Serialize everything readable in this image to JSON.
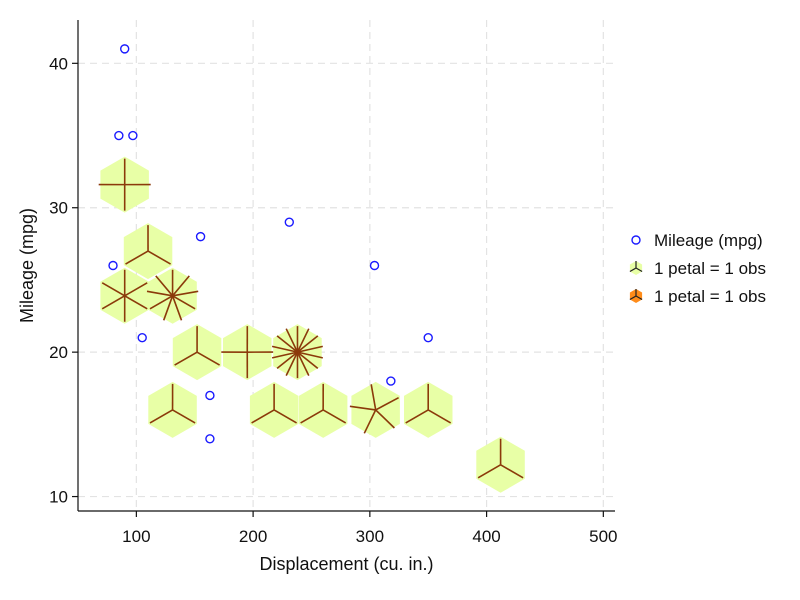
{
  "chart_data": {
    "type": "scatter",
    "subtype": "sunflower",
    "xlabel": "Displacement (cu. in.)",
    "ylabel": "Mileage (mpg)",
    "xlim": [
      50,
      510
    ],
    "ylim": [
      9,
      43
    ],
    "xticks": [
      100,
      200,
      300,
      400,
      500
    ],
    "yticks": [
      10,
      20,
      30,
      40
    ],
    "grid": true,
    "legend_position": "right",
    "colors": {
      "scatter": "#1a1aff",
      "light_sunflower": "#e8ffa6",
      "dark_sunflower": "#ff8c1a",
      "petal": "#8b3a0a",
      "grid": "#e3e3e3"
    },
    "scatter": [
      {
        "x": 90,
        "y": 41
      },
      {
        "x": 85,
        "y": 35
      },
      {
        "x": 97,
        "y": 35
      },
      {
        "x": 155,
        "y": 28
      },
      {
        "x": 231,
        "y": 29
      },
      {
        "x": 80,
        "y": 26
      },
      {
        "x": 304,
        "y": 26
      },
      {
        "x": 105,
        "y": 21
      },
      {
        "x": 350,
        "y": 21
      },
      {
        "x": 318,
        "y": 18
      },
      {
        "x": 163,
        "y": 17
      },
      {
        "x": 163,
        "y": 14
      }
    ],
    "sunflowers": [
      {
        "x": 90,
        "y": 31.6,
        "petals": 4
      },
      {
        "x": 110,
        "y": 27.0,
        "petals": 3
      },
      {
        "x": 90,
        "y": 23.9,
        "petals": 6
      },
      {
        "x": 131,
        "y": 23.9,
        "petals": 9
      },
      {
        "x": 152,
        "y": 20.0,
        "petals": 3
      },
      {
        "x": 195,
        "y": 20.0,
        "petals": 4
      },
      {
        "x": 238,
        "y": 20.0,
        "petals": 14
      },
      {
        "x": 131,
        "y": 16.0,
        "petals": 3
      },
      {
        "x": 218,
        "y": 16.0,
        "petals": 3
      },
      {
        "x": 260,
        "y": 16.0,
        "petals": 3
      },
      {
        "x": 305,
        "y": 16.0,
        "petals": 5
      },
      {
        "x": 350,
        "y": 16.0,
        "petals": 3
      },
      {
        "x": 412,
        "y": 12.2,
        "petals": 3
      }
    ],
    "legend": [
      {
        "label": "Mileage (mpg)",
        "marker": "circle"
      },
      {
        "label": "1 petal = 1 obs",
        "marker": "light-sunflower"
      },
      {
        "label": "1 petal = 1 obs",
        "marker": "dark-sunflower"
      }
    ]
  }
}
